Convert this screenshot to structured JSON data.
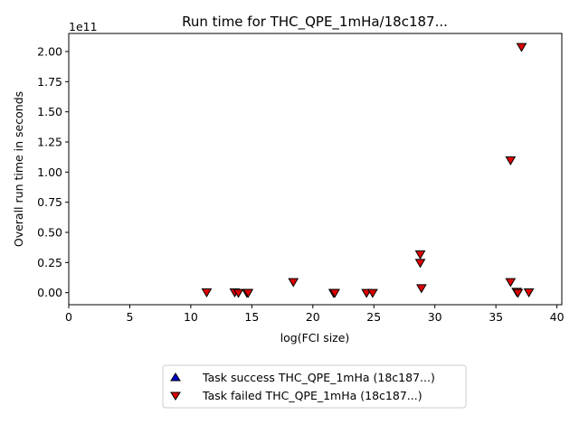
{
  "chart_data": {
    "type": "scatter",
    "title": "Run time for THC_QPE_1mHa/18c187...",
    "xlabel": "log(FCI size)",
    "ylabel": "Overall run time in seconds",
    "y_offset_label": "1e11",
    "xlim": [
      0,
      40.4
    ],
    "ylim": [
      -0.1,
      2.15
    ],
    "y_unit_scale": "1e11",
    "x_ticks": [
      0,
      5,
      10,
      15,
      20,
      25,
      30,
      35,
      40
    ],
    "x_tick_labels": [
      "0",
      "5",
      "10",
      "15",
      "20",
      "25",
      "30",
      "35",
      "40"
    ],
    "y_ticks": [
      0.0,
      0.25,
      0.5,
      0.75,
      1.0,
      1.25,
      1.5,
      1.75,
      2.0
    ],
    "y_tick_labels": [
      "0.00",
      "0.25",
      "0.50",
      "0.75",
      "1.00",
      "1.25",
      "1.50",
      "1.75",
      "2.00"
    ],
    "grid": false,
    "legend_placement": "bottom-center, below plot",
    "series": [
      {
        "name": "Task success THC_QPE_1mHa (18c187...)",
        "marker": "triangle-up",
        "color": "#0000cc",
        "points": []
      },
      {
        "name": "Task failed THC_QPE_1mHa (18c187...)",
        "marker": "triangle-down",
        "color": "#dd0000",
        "points": [
          {
            "x": 11.3,
            "y": 0.005
          },
          {
            "x": 13.6,
            "y": 0.005
          },
          {
            "x": 13.9,
            "y": 0.0
          },
          {
            "x": 14.6,
            "y": 0.0
          },
          {
            "x": 14.7,
            "y": 0.0
          },
          {
            "x": 18.4,
            "y": 0.09
          },
          {
            "x": 21.7,
            "y": 0.0
          },
          {
            "x": 21.8,
            "y": 0.0
          },
          {
            "x": 24.4,
            "y": 0.0
          },
          {
            "x": 24.9,
            "y": 0.0
          },
          {
            "x": 28.8,
            "y": 0.32
          },
          {
            "x": 28.8,
            "y": 0.25
          },
          {
            "x": 28.9,
            "y": 0.04
          },
          {
            "x": 36.2,
            "y": 1.1
          },
          {
            "x": 36.2,
            "y": 0.09
          },
          {
            "x": 36.7,
            "y": 0.01
          },
          {
            "x": 36.8,
            "y": 0.0
          },
          {
            "x": 37.1,
            "y": 2.04
          },
          {
            "x": 37.7,
            "y": 0.005
          }
        ]
      }
    ]
  }
}
